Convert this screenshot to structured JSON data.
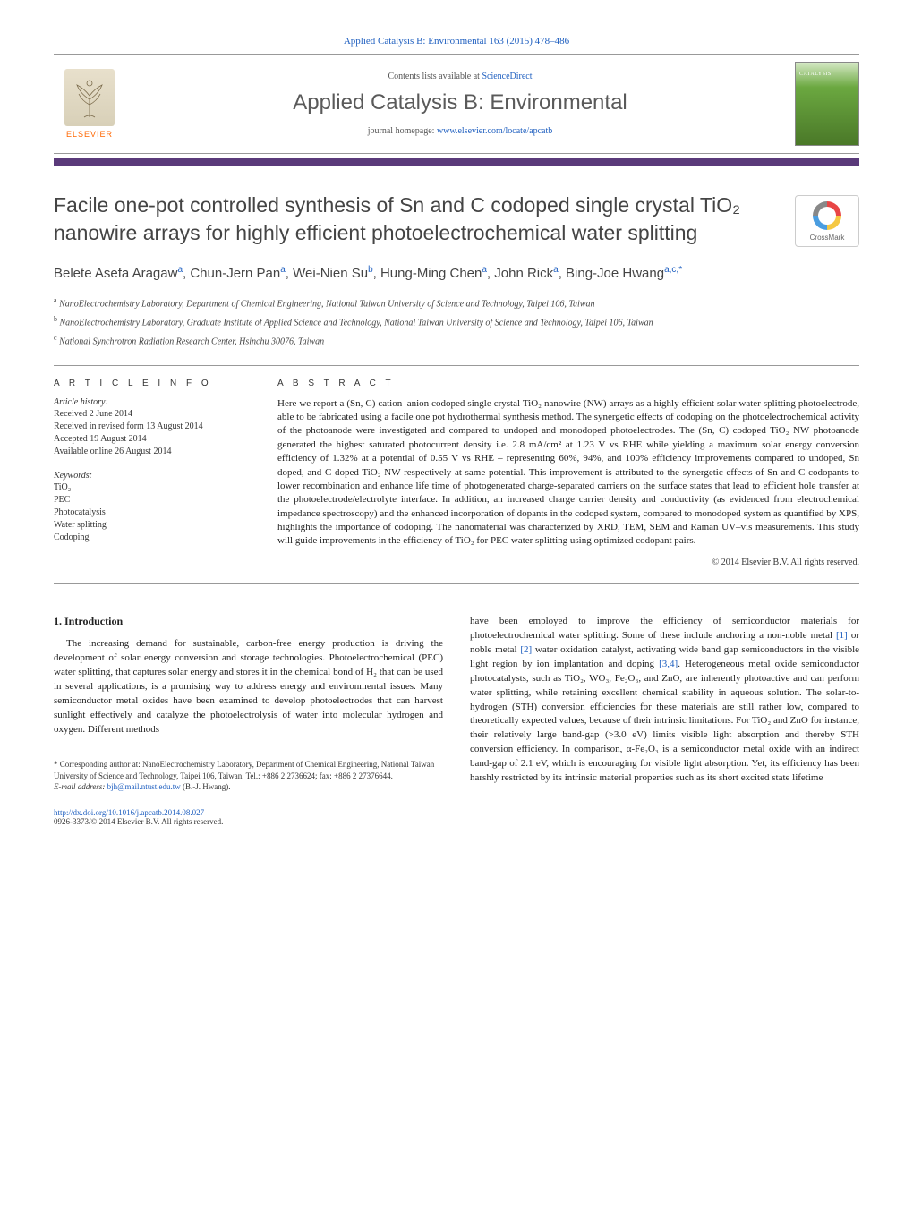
{
  "header": {
    "top_citation": "Applied Catalysis B: Environmental 163 (2015) 478–486",
    "contents_prefix": "Contents lists available at ",
    "contents_link": "ScienceDirect",
    "journal_name": "Applied Catalysis B: Environmental",
    "homepage_prefix": "journal homepage: ",
    "homepage_link": "www.elsevier.com/locate/apcatb",
    "publisher_name": "ELSEVIER",
    "cover_label": "CATALYSIS"
  },
  "crossmark_label": "CrossMark",
  "title": "Facile one-pot controlled synthesis of Sn and C codoped single crystal TiO₂ nanowire arrays for highly efficient photoelectrochemical water splitting",
  "authors_html": "Belete Asefa Aragaw<sup>a</sup>, Chun-Jern Pan<sup>a</sup>, Wei-Nien Su<sup>b</sup>, Hung-Ming Chen<sup>a</sup>, John Rick<sup>a</sup>, Bing-Joe Hwang<sup>a,c,*</sup>",
  "affiliations": [
    {
      "sup": "a",
      "text": "NanoElectrochemistry Laboratory, Department of Chemical Engineering, National Taiwan University of Science and Technology, Taipei 106, Taiwan"
    },
    {
      "sup": "b",
      "text": "NanoElectrochemistry Laboratory, Graduate Institute of Applied Science and Technology, National Taiwan University of Science and Technology, Taipei 106, Taiwan"
    },
    {
      "sup": "c",
      "text": "National Synchrotron Radiation Research Center, Hsinchu 30076, Taiwan"
    }
  ],
  "article_info": {
    "heading": "A R T I C L E   I N F O",
    "history_head": "Article history:",
    "history": [
      "Received 2 June 2014",
      "Received in revised form 13 August 2014",
      "Accepted 19 August 2014",
      "Available online 26 August 2014"
    ],
    "keywords_head": "Keywords:",
    "keywords": [
      "TiO₂",
      "PEC",
      "Photocatalysis",
      "Water splitting",
      "Codoping"
    ]
  },
  "abstract": {
    "heading": "A B S T R A C T",
    "text": "Here we report a (Sn, C) cation–anion codoped single crystal TiO₂ nanowire (NW) arrays as a highly efficient solar water splitting photoelectrode, able to be fabricated using a facile one pot hydrothermal synthesis method. The synergetic effects of codoping on the photoelectrochemical activity of the photoanode were investigated and compared to undoped and monodoped photoelectrodes. The (Sn, C) codoped TiO₂ NW photoanode generated the highest saturated photocurrent density i.e. 2.8 mA/cm² at 1.23 V vs RHE while yielding a maximum solar energy conversion efficiency of 1.32% at a potential of 0.55 V vs RHE – representing 60%, 94%, and 100% efficiency improvements compared to undoped, Sn doped, and C doped TiO₂ NW respectively at same potential. This improvement is attributed to the synergetic effects of Sn and C codopants to lower recombination and enhance life time of photogenerated charge-separated carriers on the surface states that lead to efficient hole transfer at the photoelectrode/electrolyte interface. In addition, an increased charge carrier density and conductivity (as evidenced from electrochemical impedance spectroscopy) and the enhanced incorporation of dopants in the codoped system, compared to monodoped system as quantified by XPS, highlights the importance of codoping. The nanomaterial was characterized by XRD, TEM, SEM and Raman UV–vis measurements. This study will guide improvements in the efficiency of TiO₂ for PEC water splitting using optimized codopant pairs.",
    "copyright": "© 2014 Elsevier B.V. All rights reserved."
  },
  "body": {
    "section_number": "1.",
    "section_title": "Introduction",
    "col1": "The increasing demand for sustainable, carbon-free energy production is driving the development of solar energy conversion and storage technologies. Photoelectrochemical (PEC) water splitting, that captures solar energy and stores it in the chemical bond of H₂ that can be used in several applications, is a promising way to address energy and environmental issues. Many semiconductor metal oxides have been examined to develop photoelectrodes that can harvest sunlight effectively and catalyze the photoelectrolysis of water into molecular hydrogen and oxygen. Different methods",
    "col2_p1": "have been employed to improve the efficiency of semiconductor materials for photoelectrochemical water splitting. Some of these include anchoring a non-noble metal ",
    "col2_c1": "[1]",
    "col2_p2": " or noble metal ",
    "col2_c2": "[2]",
    "col2_p3": " water oxidation catalyst, activating wide band gap semiconductors in the visible light region by ion implantation and doping ",
    "col2_c3": "[3,4]",
    "col2_p4": ". Heterogeneous metal oxide semiconductor photocatalysts, such as TiO₂, WO₃, Fe₂O₃, and ZnO, are inherently photoactive and can perform water splitting, while retaining excellent chemical stability in aqueous solution. The solar-to-hydrogen (STH) conversion efficiencies for these materials are still rather low, compared to theoretically expected values, because of their intrinsic limitations. For TiO₂ and ZnO for instance, their relatively large band-gap (>3.0 eV) limits visible light absorption and thereby STH conversion efficiency. In comparison, α-Fe₂O₃ is a semiconductor metal oxide with an indirect band-gap of 2.1 eV, which is encouraging for visible light absorption. Yet, its efficiency has been harshly restricted by its intrinsic material properties such as its short excited state lifetime"
  },
  "footnote": {
    "corr": "* Corresponding author at: NanoElectrochemistry Laboratory, Department of Chemical Engineering, National Taiwan University of Science and Technology, Taipei 106, Taiwan. Tel.: +886 2 2736624; fax: +886 2 27376644.",
    "email_label": "E-mail address: ",
    "email": "bjh@mail.ntust.edu.tw",
    "email_suffix": " (B.-J. Hwang)."
  },
  "doi": {
    "link": "http://dx.doi.org/10.1016/j.apcatb.2014.08.027",
    "issn_line": "0926-3373/© 2014 Elsevier B.V. All rights reserved."
  },
  "colors": {
    "link": "#2060c0",
    "purple_bar": "#5a3a7a",
    "elsevier_orange": "#ff6600",
    "text": "#1a1a1a",
    "heading_gray": "#444",
    "rule": "#999"
  },
  "typography": {
    "title_fontsize": 23,
    "journal_fontsize": 24,
    "authors_fontsize": 15,
    "body_fontsize": 11,
    "info_fontsize": 10,
    "footnote_fontsize": 9
  }
}
